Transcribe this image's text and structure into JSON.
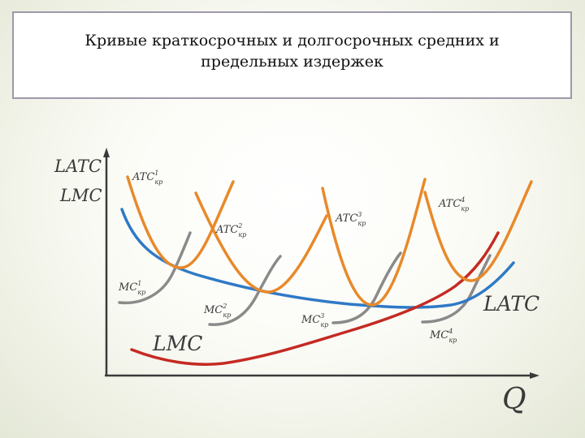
{
  "title": "Кривые краткосрочных и долгосрочных средних и\nпредельных издержек",
  "labels": {
    "y_axis_1": "LATC",
    "y_axis_2": "LMC",
    "x_axis": "Q",
    "latc_curve": "LATC",
    "lmc_curve": "LMC"
  },
  "short_run_curves": [
    {
      "atc_base": "ATC",
      "atc_sup": "1",
      "atc_sub": "кр",
      "mc_base": "MC",
      "mc_sup": "1",
      "mc_sub": "кр"
    },
    {
      "atc_base": "ATC",
      "atc_sup": "2",
      "atc_sub": "кр",
      "mc_base": "MC",
      "mc_sup": "2",
      "mc_sub": "кр"
    },
    {
      "atc_base": "ATC",
      "atc_sup": "3",
      "atc_sub": "кр",
      "mc_base": "MC",
      "mc_sup": "3",
      "mc_sub": "кр"
    },
    {
      "atc_base": "ATC",
      "atc_sup": "4",
      "atc_sub": "кр",
      "mc_base": "MC",
      "mc_sup": "4",
      "mc_sub": "кр"
    }
  ],
  "colors": {
    "atc": "#e8892a",
    "mc": "#8a8a8a",
    "latc": "#2f79c6",
    "lmc": "#c42a22",
    "axis": "#3a3a3a"
  }
}
